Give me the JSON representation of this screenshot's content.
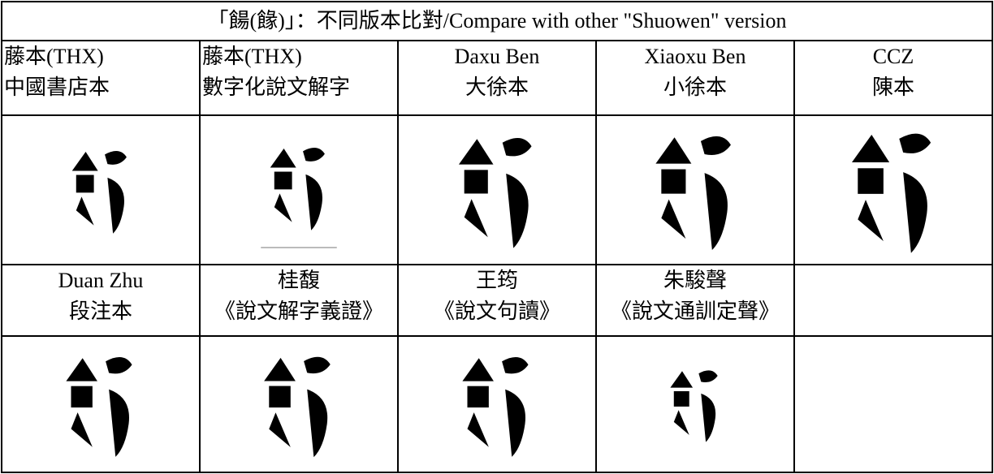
{
  "title": "「餳(餯)」：不同版本比對/Compare with other \"Shuowen\" version",
  "table": {
    "rows": [
      [
        [
          "藤本(THX)",
          "中國書店本"
        ],
        [
          "藤本(THX)",
          "數字化說文解字"
        ],
        [
          "Daxu Ben",
          "大徐本"
        ],
        [
          "Xiaoxu Ben",
          "小徐本"
        ],
        [
          "CCZ",
          "陳本"
        ]
      ],
      [
        [
          "Duan Zhu",
          "段注本"
        ],
        [
          "桂馥",
          "《說文解字義證》"
        ],
        [
          "王筠",
          "《說文句讀》"
        ],
        [
          "朱駿聲",
          "《說文通訓定聲》"
        ]
      ]
    ]
  }
}
